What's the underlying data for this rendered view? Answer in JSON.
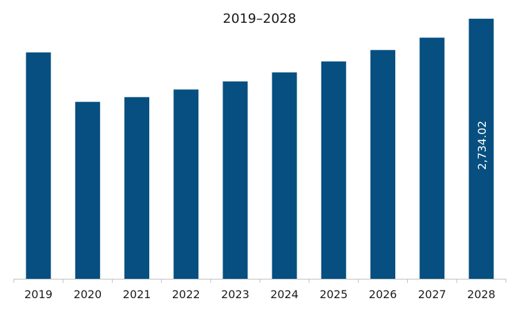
{
  "chart_data": {
    "type": "bar",
    "title": "2019–2028",
    "xlabel": "",
    "ylabel": "",
    "categories": [
      "2019",
      "2020",
      "2021",
      "2022",
      "2023",
      "2024",
      "2025",
      "2026",
      "2027",
      "2028"
    ],
    "values": [
      2380,
      1860,
      1910,
      1990,
      2075,
      2170,
      2285,
      2405,
      2535,
      2734.02
    ],
    "data_labels": [
      {
        "category": "2028",
        "text": "2,734.02"
      }
    ],
    "ylim": [
      0,
      2800
    ],
    "grid": false,
    "legend": "none",
    "colors": {
      "bar": "#064f80",
      "axis": "#bfbfbf",
      "text": "#1a1a1a",
      "label_text": "#ffffff"
    }
  }
}
